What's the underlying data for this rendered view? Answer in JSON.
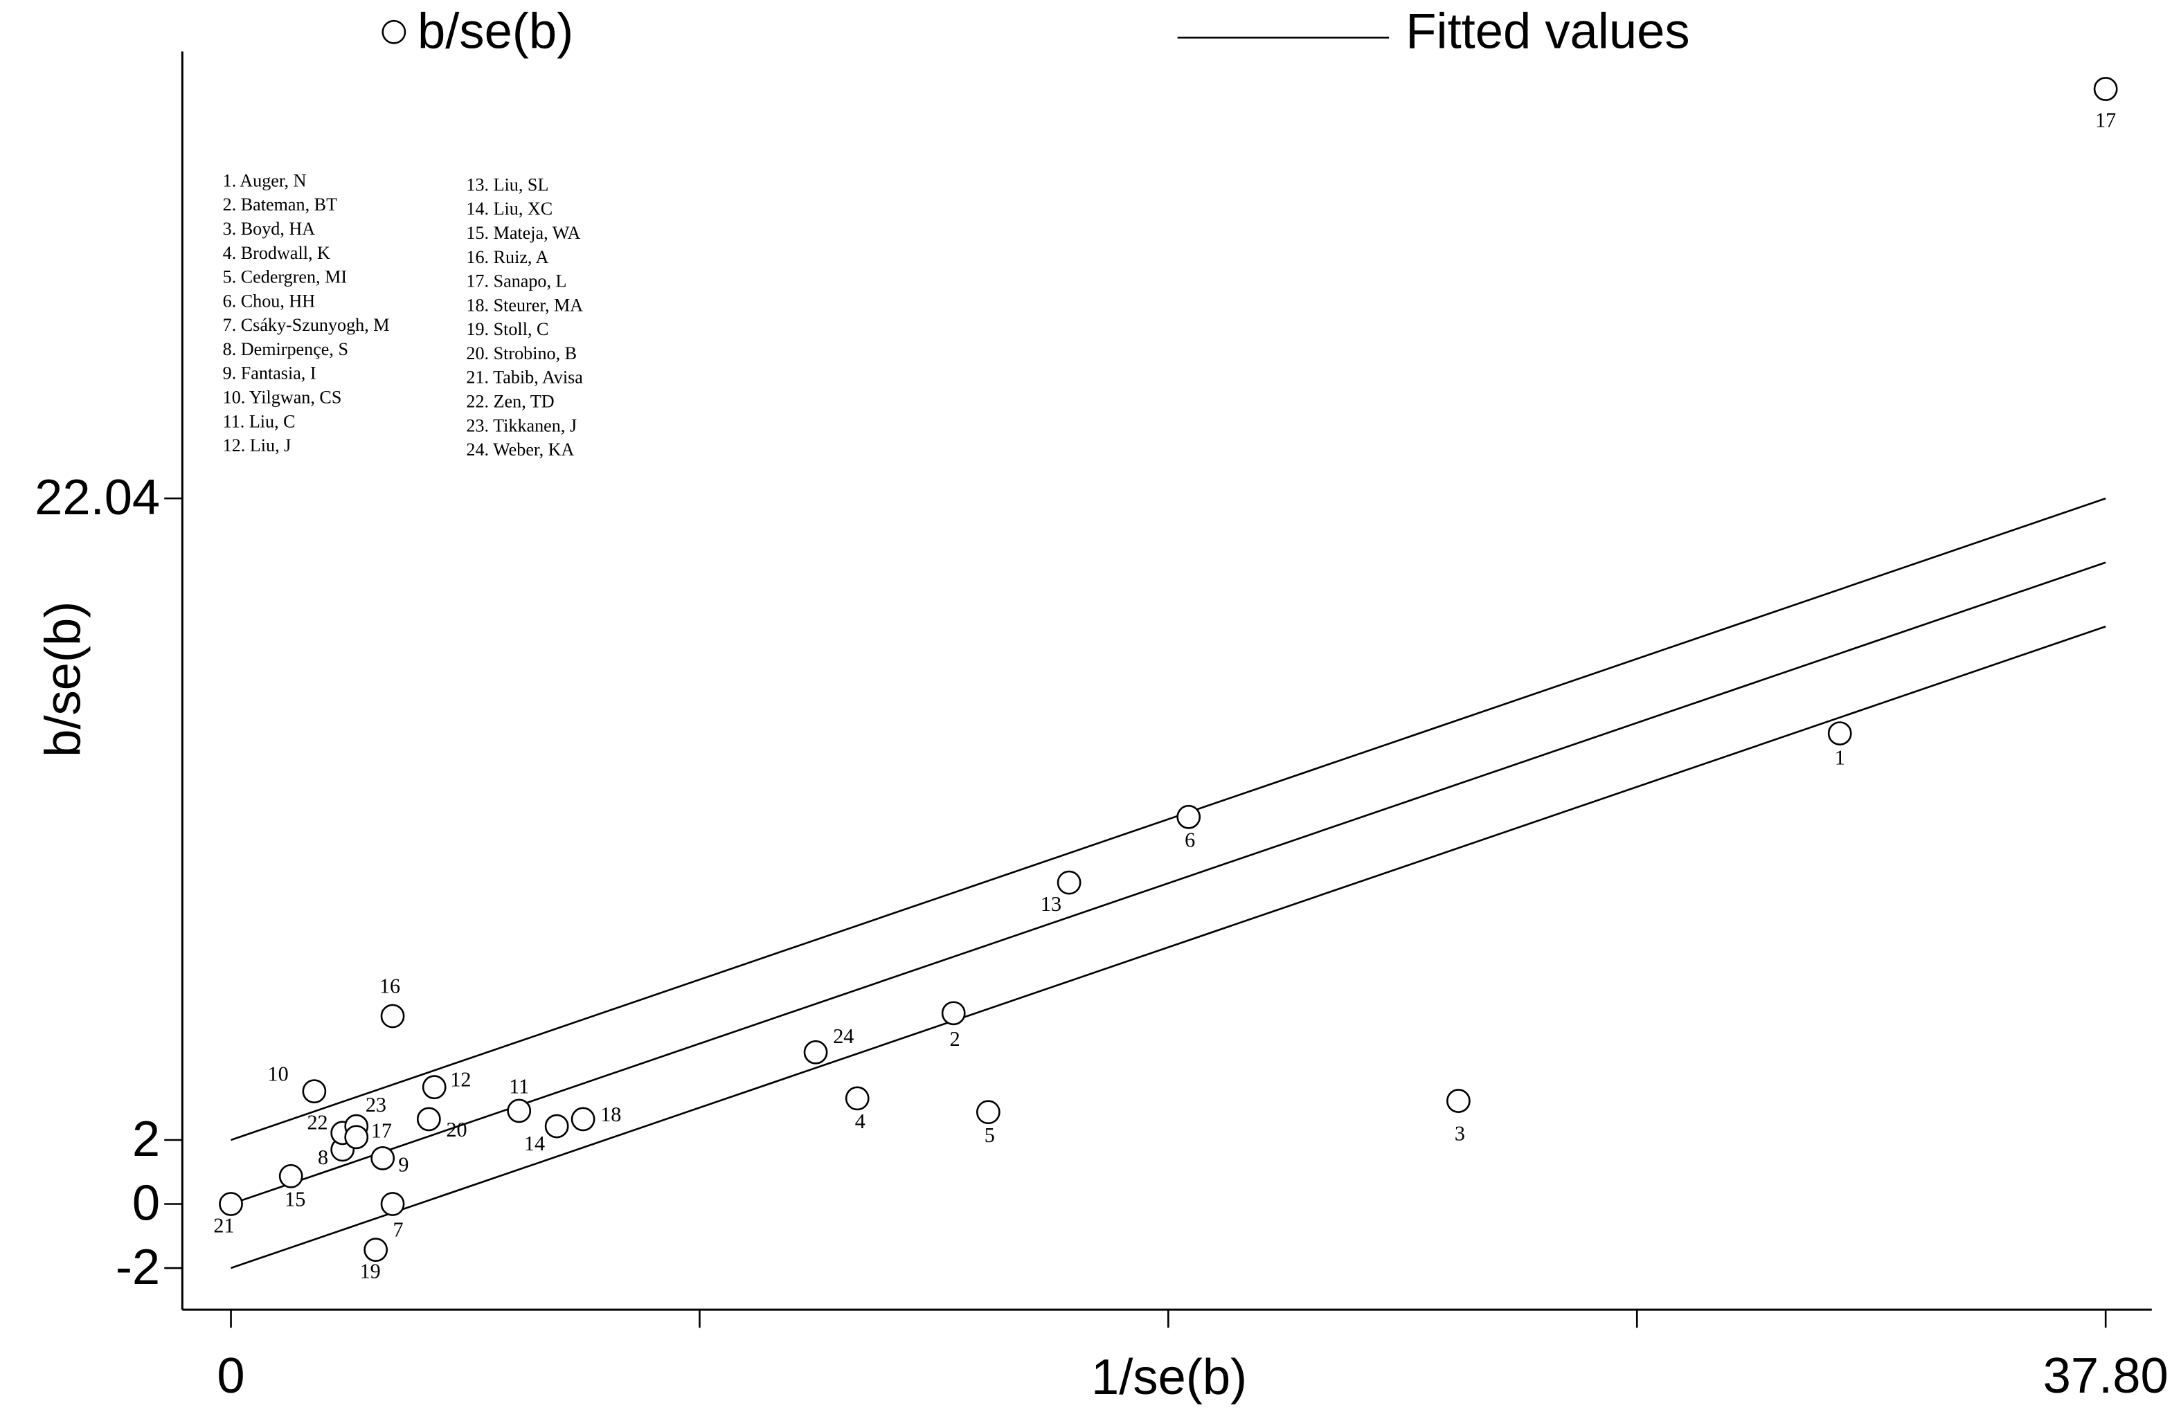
{
  "chart_data": {
    "type": "galbraith",
    "legend": {
      "points": "b/se(b)",
      "line": "Fitted values"
    },
    "xlabel": "1/se(b)",
    "ylabel": "b/se(b)",
    "xlim": [
      -0.98,
      38.73
    ],
    "ylim": [
      -3.3,
      36.0
    ],
    "xticks": [
      0,
      {
        "value": 9.45,
        "label": null
      },
      {
        "value": 18.9,
        "label": null
      },
      {
        "value": 28.35,
        "label": null
      },
      {
        "value": 37.8,
        "label": "37.80"
      }
    ],
    "yticks": [
      -2,
      0,
      2,
      22.04
    ],
    "series": [
      {
        "name": "b/se(b)",
        "color": "#000000",
        "labels": [
          "1",
          "2",
          "3",
          "4",
          "5",
          "6",
          "7",
          "8",
          "9",
          "10",
          "11",
          "12",
          "13",
          "14",
          "15",
          "16",
          "17",
          "18",
          "19",
          "20",
          "21",
          "22",
          "23",
          "24",
          "17"
        ],
        "x": [
          32.44,
          14.57,
          24.75,
          12.63,
          15.27,
          19.31,
          3.26,
          2.25,
          3.06,
          1.68,
          5.81,
          4.1,
          16.9,
          6.57,
          1.21,
          3.26,
          37.8,
          7.1,
          2.92,
          3.99,
          0,
          2.25,
          2.53,
          11.79,
          2.53
        ],
        "values": [
          14.7,
          5.96,
          3.22,
          3.3,
          2.87,
          12.09,
          0,
          1.7,
          1.43,
          3.52,
          2.91,
          3.65,
          10.04,
          2.43,
          0.87,
          5.87,
          34.83,
          2.65,
          -1.43,
          2.65,
          0,
          2.22,
          2.43,
          4.74,
          2.09
        ]
      }
    ],
    "fitted": {
      "color": "#000000",
      "x": [
        0,
        37.8
      ],
      "values": [
        0,
        20.04
      ]
    },
    "bands": [
      {
        "x": [
          0,
          37.8
        ],
        "values": [
          2,
          22.04
        ]
      },
      {
        "x": [
          0,
          37.8
        ],
        "values": [
          -2,
          18.04
        ]
      }
    ],
    "annotations": [
      "1. Auger, N",
      "2. Bateman, BT",
      "3. Boyd, HA",
      "4. Brodwall, K",
      "5. Cedergren, MI",
      "6. Chou, HH",
      "7. Csáky-Szunyogh, M",
      "8. Demirpençe, S",
      "9. Fantasia, I",
      "10. Yilgwan, CS",
      "11. Liu, C",
      "12. Liu, J",
      "13. Liu, SL",
      "14. Liu, XC",
      "15. Mateja, WA",
      "16. Ruiz, A",
      "17. Sanapo, L",
      "18. Steurer, MA",
      "19. Stoll, C",
      "20. Strobino, B",
      "21. Tabib, Avisa",
      "22. Zen, TD",
      "23. Tikkanen, J",
      "24. Weber, KA"
    ]
  }
}
